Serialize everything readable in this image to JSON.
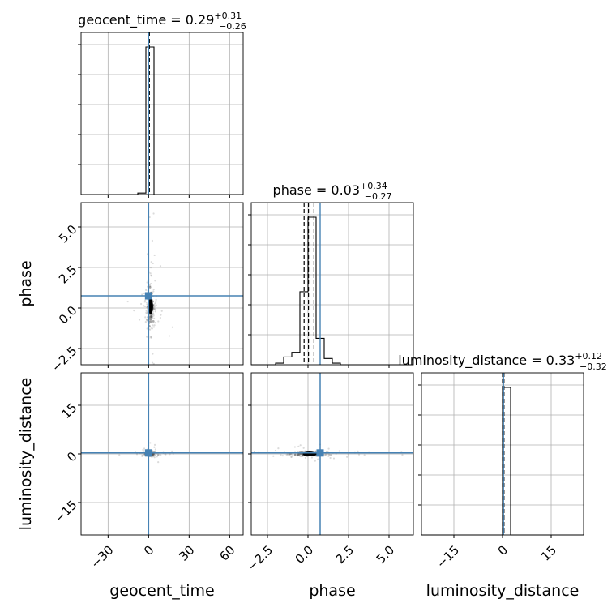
{
  "chart_data": {
    "type": "corner",
    "grid": true,
    "truth_color": "#4682b4",
    "line_color": "#000000",
    "scatter_color": "#999999",
    "parameters": [
      {
        "key": "geocent_time",
        "label": "geocent_time",
        "title": "geocent_time = 0.29",
        "title_plus": "+0.31",
        "title_minus": "−0.26",
        "range": [
          -50,
          70
        ],
        "ticks": [
          -30,
          0,
          30,
          60
        ],
        "tick_labels": [
          "−30",
          "0",
          "30",
          "60"
        ],
        "truth": 0.0,
        "quantiles": [
          0.03,
          0.29,
          0.6
        ]
      },
      {
        "key": "phase",
        "label": "phase",
        "title": "phase = 0.03",
        "title_plus": "+0.34",
        "title_minus": "−0.27",
        "range": [
          -3.5,
          6.5
        ],
        "ticks": [
          -2.5,
          0.0,
          2.5,
          5.0
        ],
        "tick_labels": [
          "−2.5",
          "0.0",
          "2.5",
          "5.0"
        ],
        "truth": 0.75,
        "quantiles": [
          -0.24,
          0.03,
          0.37
        ]
      },
      {
        "key": "luminosity_distance",
        "label": "luminosity_distance",
        "title": "luminosity_distance = 0.33",
        "title_plus": "+0.12",
        "title_minus": "−0.32",
        "range": [
          -25,
          25
        ],
        "ticks": [
          -15,
          0,
          15
        ],
        "tick_labels": [
          "−15",
          "0",
          "15"
        ],
        "truth": 0.3,
        "quantiles": [
          0.01,
          0.33,
          0.45
        ]
      }
    ],
    "histograms": [
      {
        "param": "geocent_time",
        "edges": [
          -50,
          -44,
          -38,
          -32,
          -26,
          -20,
          -14,
          -8,
          -2,
          4,
          10,
          16,
          22,
          28,
          34,
          40,
          46,
          52,
          58,
          64,
          70
        ],
        "counts": [
          0,
          0,
          0,
          0,
          0,
          0,
          0,
          0.01,
          1,
          0,
          0,
          0,
          0,
          0,
          0,
          0,
          0,
          0,
          0,
          0
        ]
      },
      {
        "param": "phase",
        "edges": [
          -3.5,
          -3.0,
          -2.5,
          -2.0,
          -1.5,
          -1.0,
          -0.5,
          0.0,
          0.5,
          1.0,
          1.5,
          2.0,
          2.5,
          3.0,
          3.5,
          4.0,
          4.5,
          5.0,
          5.5,
          6.0,
          6.5
        ],
        "counts": [
          0,
          0,
          0,
          0.01,
          0.05,
          0.08,
          0.47,
          0.95,
          0.17,
          0.04,
          0.01,
          0,
          0,
          0,
          0,
          0,
          0,
          0,
          0,
          0
        ]
      },
      {
        "param": "luminosity_distance",
        "edges": [
          -25,
          -22.5,
          -20,
          -17.5,
          -15,
          -12.5,
          -10,
          -7.5,
          -5,
          -2.5,
          0,
          2.5,
          5,
          7.5,
          10,
          12.5,
          15,
          17.5,
          20,
          22.5,
          25
        ],
        "counts": [
          0,
          0,
          0,
          0,
          0,
          0,
          0,
          0,
          0,
          0,
          1,
          0,
          0,
          0,
          0,
          0,
          0,
          0,
          0,
          0
        ]
      }
    ],
    "scatter_pairs": [
      {
        "x": "geocent_time",
        "y": "phase",
        "center": [
          1.5,
          0.1
        ],
        "spread": [
          2.0,
          0.8
        ]
      },
      {
        "x": "geocent_time",
        "y": "luminosity_distance",
        "center": [
          1.0,
          0.0
        ],
        "spread": [
          2.5,
          0.4
        ]
      },
      {
        "x": "phase",
        "y": "luminosity_distance",
        "center": [
          0.1,
          0.0
        ],
        "spread": [
          0.7,
          0.4
        ]
      }
    ]
  }
}
